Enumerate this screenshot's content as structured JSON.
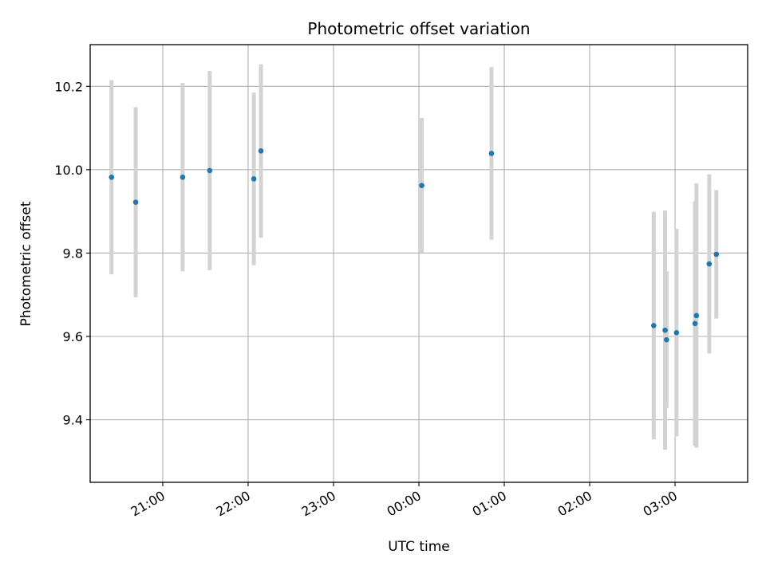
{
  "chart_data": {
    "type": "scatter",
    "title": "Photometric offset variation",
    "xlabel": "UTC time",
    "ylabel": "Photometric offset",
    "x_ticks": [
      "21:00",
      "22:00",
      "23:00",
      "00:00",
      "01:00",
      "02:00",
      "03:00"
    ],
    "y_ticks": [
      "9.4",
      "9.6",
      "9.8",
      "10.0",
      "10.2"
    ],
    "ylim": [
      9.25,
      10.3
    ],
    "xlim": [
      "20:09",
      "03:51"
    ],
    "grid": true,
    "marker_color": "#1f77b4",
    "errorbar_color": "#d3d3d3",
    "points": [
      {
        "time": "20:24",
        "value": 9.982,
        "error": 0.233
      },
      {
        "time": "20:41",
        "value": 9.922,
        "error": 0.228
      },
      {
        "time": "21:14",
        "value": 9.982,
        "error": 0.226
      },
      {
        "time": "21:33",
        "value": 9.998,
        "error": 0.239
      },
      {
        "time": "22:04",
        "value": 9.978,
        "error": 0.207
      },
      {
        "time": "22:09",
        "value": 10.045,
        "error": 0.208
      },
      {
        "time": "00:02",
        "value": 9.962,
        "error": 0.162
      },
      {
        "time": "00:51",
        "value": 10.039,
        "error": 0.207
      },
      {
        "time": "02:45",
        "value": 9.626,
        "error": 0.273
      },
      {
        "time": "02:53",
        "value": 9.615,
        "error": 0.287
      },
      {
        "time": "02:54",
        "value": 9.592,
        "error": 0.164
      },
      {
        "time": "03:01",
        "value": 9.609,
        "error": 0.249
      },
      {
        "time": "03:14",
        "value": 9.631,
        "error": 0.293
      },
      {
        "time": "03:15",
        "value": 9.65,
        "error": 0.317
      },
      {
        "time": "03:24",
        "value": 9.774,
        "error": 0.215
      },
      {
        "time": "03:29",
        "value": 9.797,
        "error": 0.154
      }
    ]
  }
}
